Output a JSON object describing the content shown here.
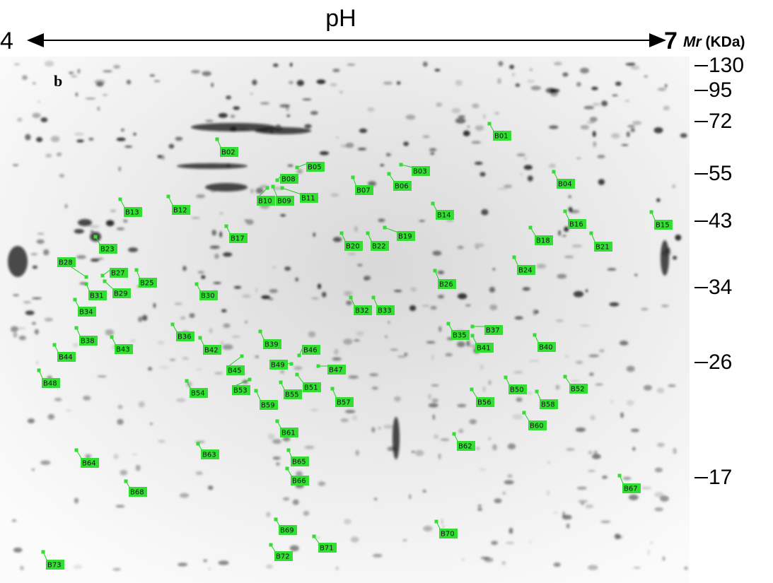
{
  "header": {
    "axis_label": "pH",
    "ph_start": "4",
    "ph_end": "7",
    "mr_prefix": "Mr",
    "mr_unit": "(KDa)",
    "panel": "b"
  },
  "mr_markers": [
    130,
    95,
    72,
    55,
    43,
    34,
    26,
    17
  ],
  "spots": [
    "B01",
    "B02",
    "B03",
    "B04",
    "B05",
    "B06",
    "B07",
    "B08",
    "B09",
    "B10",
    "B11",
    "B12",
    "B13",
    "B14",
    "B15",
    "B16",
    "B17",
    "B18",
    "B19",
    "B20",
    "B21",
    "B22",
    "B23",
    "B24",
    "B25",
    "B26",
    "B27",
    "B28",
    "B29",
    "B30",
    "B31",
    "B32",
    "B33",
    "B34",
    "B35",
    "B36",
    "B37",
    "B38",
    "B39",
    "B40",
    "B41",
    "B42",
    "B43",
    "B44",
    "B45",
    "B46",
    "B47",
    "B48",
    "B49",
    "B50",
    "B51",
    "B52",
    "B53",
    "B54",
    "B55",
    "B56",
    "B57",
    "B58",
    "B59",
    "B60",
    "B61",
    "B62",
    "B63",
    "B64",
    "B65",
    "B66",
    "B67",
    "B68",
    "B69",
    "B70",
    "B71",
    "B72",
    "B73"
  ]
}
